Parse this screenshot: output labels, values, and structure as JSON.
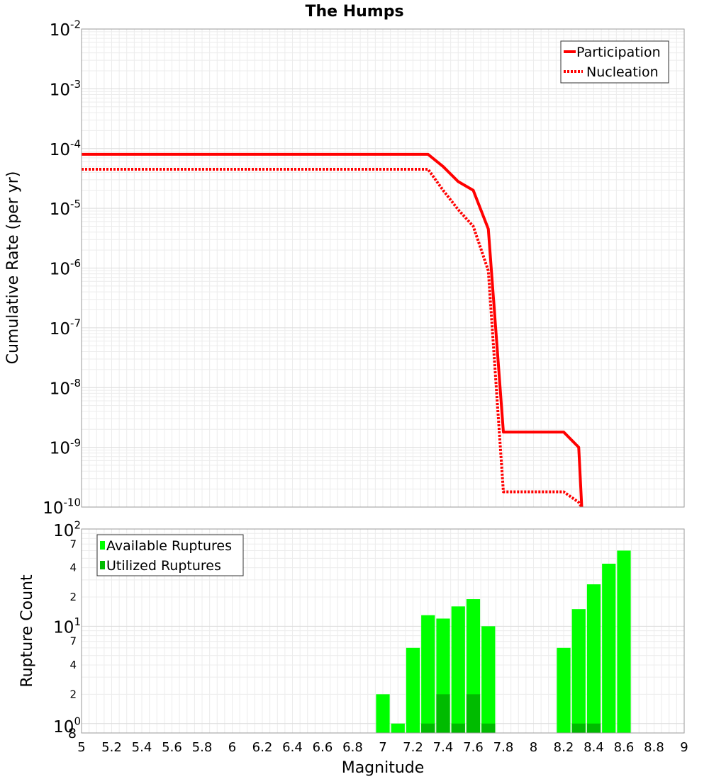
{
  "chart_data": [
    {
      "type": "line",
      "title": "The Humps",
      "ylabel": "Cumulative Rate (per yr)",
      "xlabel": "",
      "yscale": "log",
      "xlim": [
        5,
        9
      ],
      "ylim": [
        1e-10,
        0.01
      ],
      "y_ticks": [
        {
          "base": "10",
          "exp": "-2"
        },
        {
          "base": "10",
          "exp": "-3"
        },
        {
          "base": "10",
          "exp": "-4"
        },
        {
          "base": "10",
          "exp": "-5"
        },
        {
          "base": "10",
          "exp": "-6"
        },
        {
          "base": "10",
          "exp": "-7"
        },
        {
          "base": "10",
          "exp": "-8"
        },
        {
          "base": "10",
          "exp": "-9"
        },
        {
          "base": "10",
          "exp": "-10"
        }
      ],
      "grid": true,
      "legend": "top-right",
      "series": [
        {
          "name": "Participation",
          "color": "#ff0000",
          "style": "solid",
          "x": [
            5.0,
            7.3,
            7.4,
            7.5,
            7.6,
            7.7,
            7.8,
            8.2,
            8.3,
            8.32
          ],
          "y": [
            8e-05,
            8e-05,
            5e-05,
            2.8e-05,
            2e-05,
            4.5e-06,
            1.8e-09,
            1.8e-09,
            1e-09,
            1e-10
          ]
        },
        {
          "name": "Nucleation",
          "color": "#ff0000",
          "style": "dotted",
          "x": [
            5.0,
            7.3,
            7.4,
            7.5,
            7.6,
            7.7,
            7.8,
            8.2,
            8.3,
            8.32
          ],
          "y": [
            4.5e-05,
            4.5e-05,
            2e-05,
            9.5e-06,
            5e-06,
            9e-07,
            1.8e-10,
            1.8e-10,
            1.2e-10,
            1e-10
          ]
        }
      ]
    },
    {
      "type": "bar",
      "xlabel": "Magnitude",
      "ylabel": "Rupture Count",
      "yscale": "log",
      "xlim": [
        5,
        9
      ],
      "ylim": [
        0.8,
        100
      ],
      "x_ticks": [
        "5",
        "5.2",
        "5.4",
        "5.6",
        "5.8",
        "6",
        "6.2",
        "6.4",
        "6.6",
        "6.8",
        "7",
        "7.2",
        "7.4",
        "7.6",
        "7.8",
        "8",
        "8.2",
        "8.4",
        "8.6",
        "8.8",
        "9"
      ],
      "y_major_ticks": [
        {
          "value": 100,
          "base": "10",
          "exp": "2"
        },
        {
          "value": 10,
          "base": "10",
          "exp": "1"
        },
        {
          "value": 1,
          "base": "10",
          "exp": "0"
        }
      ],
      "y_minor_ticks": [
        {
          "value": 70,
          "label": "7"
        },
        {
          "value": 40,
          "label": "4"
        },
        {
          "value": 20,
          "label": "2"
        },
        {
          "value": 7,
          "label": "7"
        },
        {
          "value": 4,
          "label": "4"
        },
        {
          "value": 2,
          "label": "2"
        },
        {
          "value": 0.8,
          "label": "8"
        }
      ],
      "grid": true,
      "legend": "top-left",
      "bin_width": 0.1,
      "series": [
        {
          "name": "Available Ruptures",
          "color": "#00ff00",
          "x": [
            7.0,
            7.1,
            7.2,
            7.3,
            7.4,
            7.5,
            7.6,
            7.7,
            7.8,
            8.2,
            8.3,
            8.4,
            8.5,
            8.6
          ],
          "values": [
            2,
            1,
            6,
            13,
            12,
            16,
            19,
            10,
            0,
            6,
            15,
            27,
            44,
            60
          ]
        },
        {
          "name": "Utilized Ruptures",
          "color": "#00bb00",
          "x": [
            7.3,
            7.4,
            7.5,
            7.6,
            7.7,
            8.3,
            8.4
          ],
          "values": [
            1,
            2,
            1,
            2,
            1,
            1,
            1
          ]
        }
      ]
    }
  ]
}
